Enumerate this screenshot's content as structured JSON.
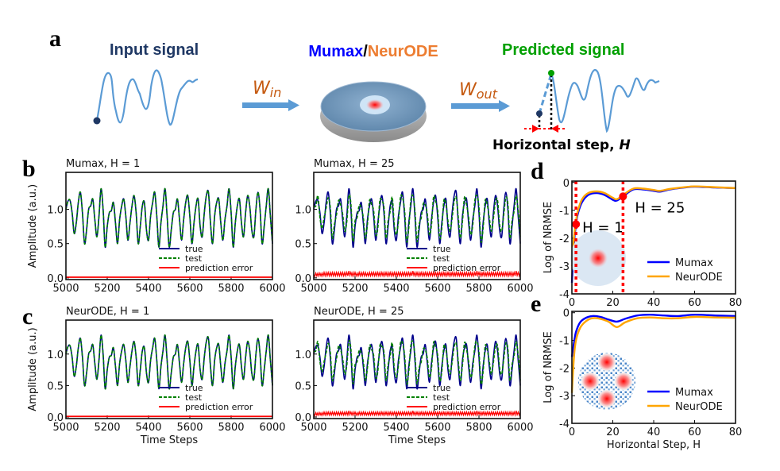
{
  "panel_labels": {
    "a": "a",
    "b": "b",
    "c": "c",
    "d": "d",
    "e": "e"
  },
  "schematic": {
    "input_label": "Input signal",
    "model_label_1": "Mumax",
    "model_sep": "/",
    "model_label_2": "NeurODE",
    "output_label": "Predicted signal",
    "w_in": "W",
    "w_in_sub": "in",
    "w_out": "W",
    "w_out_sub": "out",
    "step_label": "Horizontal step, ",
    "step_symbol": "H",
    "colors": {
      "input": "#1f3864",
      "mumax": "#0000ff",
      "neurode": "#ed7d31",
      "predicted": "#00a000",
      "signal": "#5b9bd5",
      "arrow": "#5b9bd5",
      "step_marker": "#ff0000"
    }
  },
  "chart_data": [
    {
      "id": "b-left",
      "type": "line",
      "title": "Mumax, H = 1",
      "xlabel": "",
      "ylabel": "Amplitude (a.u.)",
      "xlim": [
        5000,
        6000
      ],
      "ylim": [
        -0.025,
        1.54
      ],
      "xticks": [
        "5000",
        "5200",
        "5400",
        "5600",
        "5800",
        "6000"
      ],
      "yticks": [
        "0.0",
        "0.5",
        "1.0"
      ],
      "legend": [
        "true",
        "test",
        "prediction error"
      ],
      "legend_position": "lower-center",
      "series_ref": {
        "true": "true",
        "test": "true",
        "error_level": 0.01
      }
    },
    {
      "id": "b-right",
      "type": "line",
      "title": "Mumax, H = 25",
      "xlabel": "",
      "ylabel": "",
      "xlim": [
        5000,
        6000
      ],
      "ylim": [
        -0.025,
        1.54
      ],
      "xticks": [
        "5000",
        "5200",
        "5400",
        "5600",
        "5800",
        "6000"
      ],
      "yticks": [
        "0.0",
        "0.5",
        "1.0"
      ],
      "legend": [
        "true",
        "test",
        "prediction error"
      ],
      "legend_position": "lower-center",
      "series_ref": {
        "true": "true",
        "test": "test_H25"
      }
    },
    {
      "id": "c-left",
      "type": "line",
      "title": "NeurODE,  H = 1",
      "xlabel": "Time Steps",
      "ylabel": "Amplitude (a.u.)",
      "xlim": [
        5000,
        6000
      ],
      "ylim": [
        -0.025,
        1.54
      ],
      "xticks": [
        "5000",
        "5200",
        "5400",
        "5600",
        "5800",
        "6000"
      ],
      "yticks": [
        "0.0",
        "0.5",
        "1.0"
      ],
      "legend": [
        "true",
        "test",
        "prediction error"
      ],
      "legend_position": "lower-center",
      "series_ref": {
        "true": "true",
        "test": "true",
        "error_level": 0.01
      }
    },
    {
      "id": "c-right",
      "type": "line",
      "title": "NeurODE,  H = 25",
      "xlabel": "Time Steps",
      "ylabel": "",
      "xlim": [
        5000,
        6000
      ],
      "ylim": [
        -0.025,
        1.54
      ],
      "xticks": [
        "5000",
        "5200",
        "5400",
        "5600",
        "5800",
        "6000"
      ],
      "yticks": [
        "0.0",
        "0.5",
        "1.0"
      ],
      "legend": [
        "true",
        "test",
        "prediction error"
      ],
      "legend_position": "lower-center",
      "series_ref": {
        "true": "true",
        "test": "test_H25"
      }
    },
    {
      "id": "d",
      "type": "line",
      "title": "",
      "xlabel": "",
      "ylabel": "Log of NRMSE",
      "xlim": [
        0,
        80
      ],
      "ylim": [
        -4,
        0.05
      ],
      "xticks": [
        "0",
        "20",
        "40",
        "60",
        "80"
      ],
      "yticks": [
        "0",
        "-1",
        "-2",
        "-3",
        "-4"
      ],
      "legend_position": "lower-right",
      "annotations": [
        {
          "text": "H = 1",
          "x": 2,
          "y": -1.5
        },
        {
          "text": "H = 25",
          "x": 25,
          "y": -0.5
        }
      ],
      "marker_lines_x": [
        2,
        25
      ],
      "x": [
        0,
        1,
        2,
        3,
        5,
        8,
        12,
        16,
        20,
        22,
        25,
        30,
        35,
        40,
        43,
        48,
        55,
        60,
        70,
        80
      ],
      "series": [
        {
          "name": "Mumax",
          "color": "#0000ff",
          "values": [
            -3.6,
            -2.2,
            -1.5,
            -1.1,
            -0.7,
            -0.45,
            -0.38,
            -0.45,
            -0.62,
            -0.65,
            -0.5,
            -0.25,
            -0.25,
            -0.3,
            -0.33,
            -0.25,
            -0.18,
            -0.15,
            -0.18,
            -0.2
          ]
        },
        {
          "name": "NeurODE",
          "color": "#ffa500",
          "values": [
            -3.0,
            -2.0,
            -1.4,
            -1.0,
            -0.6,
            -0.38,
            -0.32,
            -0.38,
            -0.55,
            -0.6,
            -0.45,
            -0.22,
            -0.22,
            -0.27,
            -0.3,
            -0.23,
            -0.17,
            -0.14,
            -0.17,
            -0.2
          ]
        }
      ]
    },
    {
      "id": "e",
      "type": "line",
      "title": "",
      "xlabel": "Horizontal Step, H",
      "ylabel": "Log of NRMSE",
      "xlim": [
        0,
        80
      ],
      "ylim": [
        -4,
        0.05
      ],
      "xticks": [
        "0",
        "20",
        "40",
        "60",
        "80"
      ],
      "yticks": [
        "0",
        "-1",
        "-2",
        "-3",
        "-4"
      ],
      "legend_position": "lower-right",
      "x": [
        0,
        1,
        2,
        4,
        7,
        10,
        14,
        18,
        22,
        26,
        32,
        38,
        45,
        52,
        60,
        70,
        80
      ],
      "series": [
        {
          "name": "Mumax",
          "color": "#0000ff",
          "values": [
            -1.6,
            -1.1,
            -0.7,
            -0.35,
            -0.18,
            -0.12,
            -0.15,
            -0.25,
            -0.32,
            -0.22,
            -0.1,
            -0.07,
            -0.1,
            -0.12,
            -0.07,
            -0.1,
            -0.12
          ]
        },
        {
          "name": "NeurODE",
          "color": "#ffa500",
          "values": [
            -2.9,
            -1.6,
            -1.0,
            -0.55,
            -0.3,
            -0.2,
            -0.22,
            -0.33,
            -0.52,
            -0.35,
            -0.2,
            -0.17,
            -0.2,
            -0.2,
            -0.15,
            -0.17,
            -0.18
          ]
        }
      ]
    }
  ],
  "signals": {
    "x_range": [
      5000,
      6000
    ],
    "true": [
      1.0,
      1.12,
      1.13,
      0.95,
      0.65,
      0.8,
      1.1,
      1.25,
      0.95,
      0.5,
      0.7,
      1.0,
      1.05,
      1.15,
      0.85,
      0.6,
      0.9,
      1.3,
      1.0,
      0.45,
      0.75,
      0.95,
      0.98,
      1.1,
      0.8,
      0.5,
      0.85,
      1.05,
      1.15,
      0.9,
      0.55,
      0.8,
      1.05,
      1.2,
      0.95,
      0.5,
      0.75,
      1.05,
      1.1,
      0.7,
      0.55,
      0.9,
      1.1,
      1.25,
      0.9,
      0.45,
      0.8,
      1.05,
      1.3,
      0.9,
      0.45,
      0.7,
      0.95,
      1.0,
      1.15,
      0.85,
      0.55,
      0.85,
      1.1,
      1.2,
      0.9,
      0.5,
      0.8,
      1.05,
      1.15,
      0.75,
      0.6,
      0.95,
      1.2,
      1.25,
      0.8,
      0.5,
      0.9,
      1.1,
      1.15,
      0.8,
      0.55,
      0.85,
      1.05,
      1.3,
      0.95,
      0.45,
      0.8,
      1.05,
      1.15,
      0.8,
      0.6,
      0.95,
      1.2,
      1.05,
      0.7,
      0.6,
      1.0,
      1.25,
      1.0,
      0.5,
      0.75,
      1.05,
      1.3,
      0.9,
      0.5
    ],
    "test_H25": [
      1.05,
      1.05,
      1.2,
      0.88,
      0.72,
      0.88,
      1.02,
      1.17,
      1.03,
      0.58,
      0.78,
      0.92,
      1.13,
      1.07,
      0.93,
      0.68,
      0.82,
      1.2,
      1.08,
      0.53,
      0.83,
      0.88,
      1.06,
      1.02,
      0.88,
      0.58,
      0.78,
      1.13,
      1.07,
      0.98,
      0.63,
      0.72,
      1.13,
      1.12,
      1.03,
      0.58,
      0.83,
      0.97,
      1.18,
      0.78,
      0.63,
      0.82,
      1.18,
      1.17,
      0.98,
      0.53,
      0.72,
      1.13,
      1.2,
      0.98,
      0.53,
      0.78,
      0.87,
      1.08,
      1.07,
      0.93,
      0.63,
      0.77,
      1.18,
      1.12,
      0.98,
      0.58,
      0.72,
      1.13,
      1.07,
      0.83,
      0.68,
      0.87,
      1.12,
      1.17,
      0.88,
      0.58,
      0.82,
      1.18,
      1.07,
      0.88,
      0.63,
      0.77,
      1.13,
      1.2,
      1.03,
      0.53,
      0.72,
      1.13,
      1.07,
      0.88,
      0.68,
      0.87,
      1.12,
      1.13,
      0.78,
      0.68,
      0.92,
      1.17,
      1.08,
      0.58,
      0.83,
      0.97,
      1.2,
      0.98,
      0.58
    ],
    "colors": {
      "true": "#00008b",
      "test": "#008000",
      "error": "#ff0000"
    }
  }
}
